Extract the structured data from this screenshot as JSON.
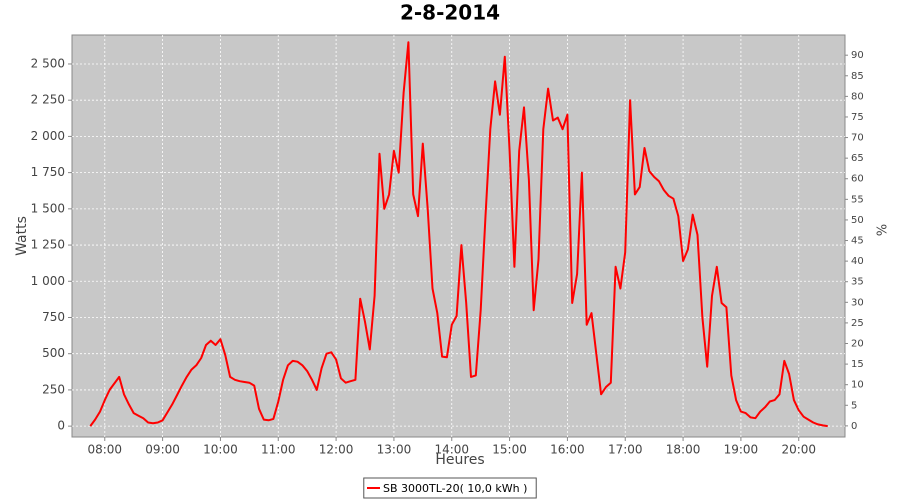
{
  "chart_data": {
    "type": "line",
    "title": "2-8-2014",
    "xlabel": "Heures",
    "ylabel": "Watts",
    "y2label": "%",
    "grid": true,
    "legend": "bottom",
    "background": "#c8c8c8",
    "xlim": [
      "07:26",
      "20:48"
    ],
    "xticks": [
      "08:00",
      "09:00",
      "10:00",
      "11:00",
      "12:00",
      "13:00",
      "14:00",
      "15:00",
      "16:00",
      "17:00",
      "18:00",
      "19:00",
      "20:00"
    ],
    "ylim": [
      -75,
      2700
    ],
    "yticks": [
      0,
      250,
      500,
      750,
      {
        "value": 1000,
        "label": "1 000"
      },
      {
        "value": 1250,
        "label": "1 250"
      },
      {
        "value": 1500,
        "label": "1 500"
      },
      {
        "value": 1750,
        "label": "1 750"
      },
      {
        "value": 2000,
        "label": "2 000"
      },
      {
        "value": 2250,
        "label": "2 250"
      },
      {
        "value": 2500,
        "label": "2 500"
      }
    ],
    "y2lim": [
      -2.7,
      94.9
    ],
    "y2ticks": [
      0,
      5,
      10,
      15,
      20,
      25,
      30,
      35,
      40,
      45,
      50,
      55,
      60,
      65,
      70,
      75,
      80,
      85,
      90
    ],
    "x": [
      "07:45",
      "07:50",
      "07:55",
      "08:00",
      "08:05",
      "08:10",
      "08:15",
      "08:20",
      "08:25",
      "08:30",
      "08:35",
      "08:40",
      "08:45",
      "08:50",
      "08:55",
      "09:00",
      "09:05",
      "09:10",
      "09:15",
      "09:20",
      "09:25",
      "09:30",
      "09:35",
      "09:40",
      "09:45",
      "09:50",
      "09:55",
      "10:00",
      "10:05",
      "10:10",
      "10:15",
      "10:20",
      "10:25",
      "10:30",
      "10:35",
      "10:40",
      "10:45",
      "10:50",
      "10:55",
      "11:00",
      "11:05",
      "11:10",
      "11:15",
      "11:20",
      "11:25",
      "11:30",
      "11:35",
      "11:40",
      "11:45",
      "11:50",
      "11:55",
      "12:00",
      "12:05",
      "12:10",
      "12:15",
      "12:20",
      "12:25",
      "12:30",
      "12:35",
      "12:40",
      "12:45",
      "12:50",
      "12:55",
      "13:00",
      "13:05",
      "13:10",
      "13:15",
      "13:20",
      "13:25",
      "13:30",
      "13:35",
      "13:40",
      "13:45",
      "13:50",
      "13:55",
      "14:00",
      "14:05",
      "14:10",
      "14:15",
      "14:20",
      "14:25",
      "14:30",
      "14:35",
      "14:40",
      "14:45",
      "14:50",
      "14:55",
      "15:00",
      "15:05",
      "15:10",
      "15:15",
      "15:20",
      "15:25",
      "15:30",
      "15:35",
      "15:40",
      "15:45",
      "15:50",
      "15:55",
      "16:00",
      "16:05",
      "16:10",
      "16:15",
      "16:20",
      "16:25",
      "16:30",
      "16:35",
      "16:40",
      "16:45",
      "16:50",
      "16:55",
      "17:00",
      "17:05",
      "17:10",
      "17:15",
      "17:20",
      "17:25",
      "17:30",
      "17:35",
      "17:40",
      "17:45",
      "17:50",
      "17:55",
      "18:00",
      "18:05",
      "18:10",
      "18:15",
      "18:20",
      "18:25",
      "18:30",
      "18:35",
      "18:40",
      "18:45",
      "18:50",
      "18:55",
      "19:00",
      "19:05",
      "19:10",
      "19:15",
      "19:20",
      "19:25",
      "19:30",
      "19:35",
      "19:40",
      "19:45",
      "19:50",
      "19:55",
      "20:00",
      "20:05",
      "20:10",
      "20:15",
      "20:20",
      "20:25",
      "20:30"
    ],
    "series": [
      {
        "name": "SB 3000TL-20( 10,0 kWh )",
        "color": "#ff0000",
        "values": [
          0,
          45,
          100,
          180,
          250,
          295,
          340,
          220,
          150,
          90,
          72,
          55,
          25,
          20,
          25,
          40,
          95,
          150,
          215,
          280,
          340,
          390,
          420,
          470,
          560,
          590,
          560,
          600,
          490,
          340,
          320,
          310,
          305,
          300,
          280,
          120,
          45,
          40,
          50,
          170,
          320,
          420,
          450,
          445,
          420,
          380,
          320,
          250,
          400,
          500,
          510,
          460,
          330,
          300,
          310,
          320,
          880,
          720,
          530,
          900,
          1880,
          1500,
          1600,
          1900,
          1750,
          2300,
          2650,
          1600,
          1450,
          1950,
          1500,
          950,
          780,
          480,
          475,
          700,
          760,
          1250,
          850,
          340,
          350,
          800,
          1450,
          2050,
          2380,
          2150,
          2550,
          1900,
          1100,
          1900,
          2200,
          1700,
          800,
          1150,
          2050,
          2330,
          2110,
          2130,
          2050,
          2150,
          850,
          1050,
          1750,
          700,
          780,
          500,
          220,
          270,
          300,
          1100,
          950,
          1200,
          2250,
          1600,
          1650,
          1920,
          1760,
          1720,
          1690,
          1630,
          1590,
          1570,
          1450,
          1140,
          1220,
          1460,
          1320,
          750,
          410,
          900,
          1100,
          850,
          820,
          350,
          180,
          100,
          90,
          60,
          55,
          100,
          130,
          170,
          180,
          220,
          450,
          360,
          180,
          110,
          65,
          45,
          25,
          12,
          5,
          0
        ]
      }
    ]
  }
}
